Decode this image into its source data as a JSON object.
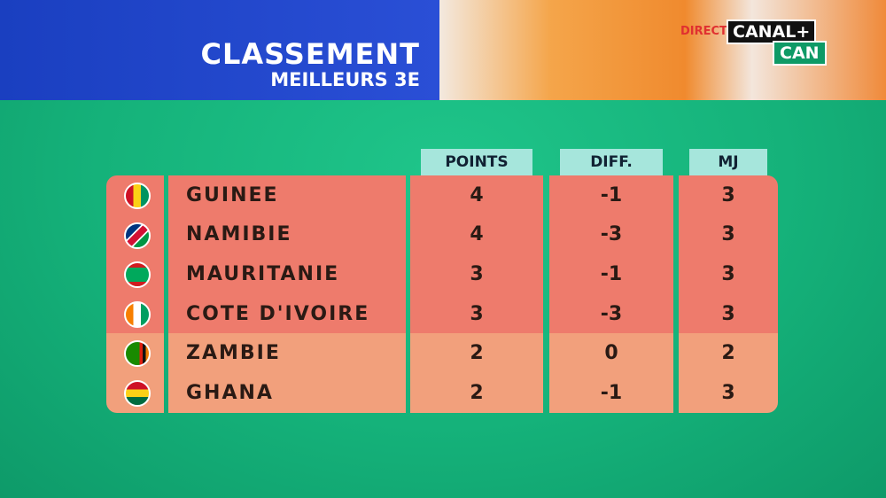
{
  "header": {
    "title": "CLASSEMENT",
    "subtitle": "MEILLEURS 3E"
  },
  "broadcast": {
    "live": "DIRECT",
    "channel": "CANAL+",
    "program": "CAN"
  },
  "table": {
    "columns": [
      "POINTS",
      "DIFF.",
      "MJ"
    ],
    "rows": [
      [
        "GUINEE",
        4,
        -1,
        3
      ],
      [
        "NAMIBIE",
        4,
        -3,
        3
      ],
      [
        "MAURITANIE",
        3,
        -1,
        3
      ],
      [
        "COTE D'IVOIRE",
        3,
        -3,
        3
      ],
      [
        "ZAMBIE",
        2,
        0,
        2
      ],
      [
        "GHANA",
        2,
        -1,
        3
      ]
    ]
  }
}
